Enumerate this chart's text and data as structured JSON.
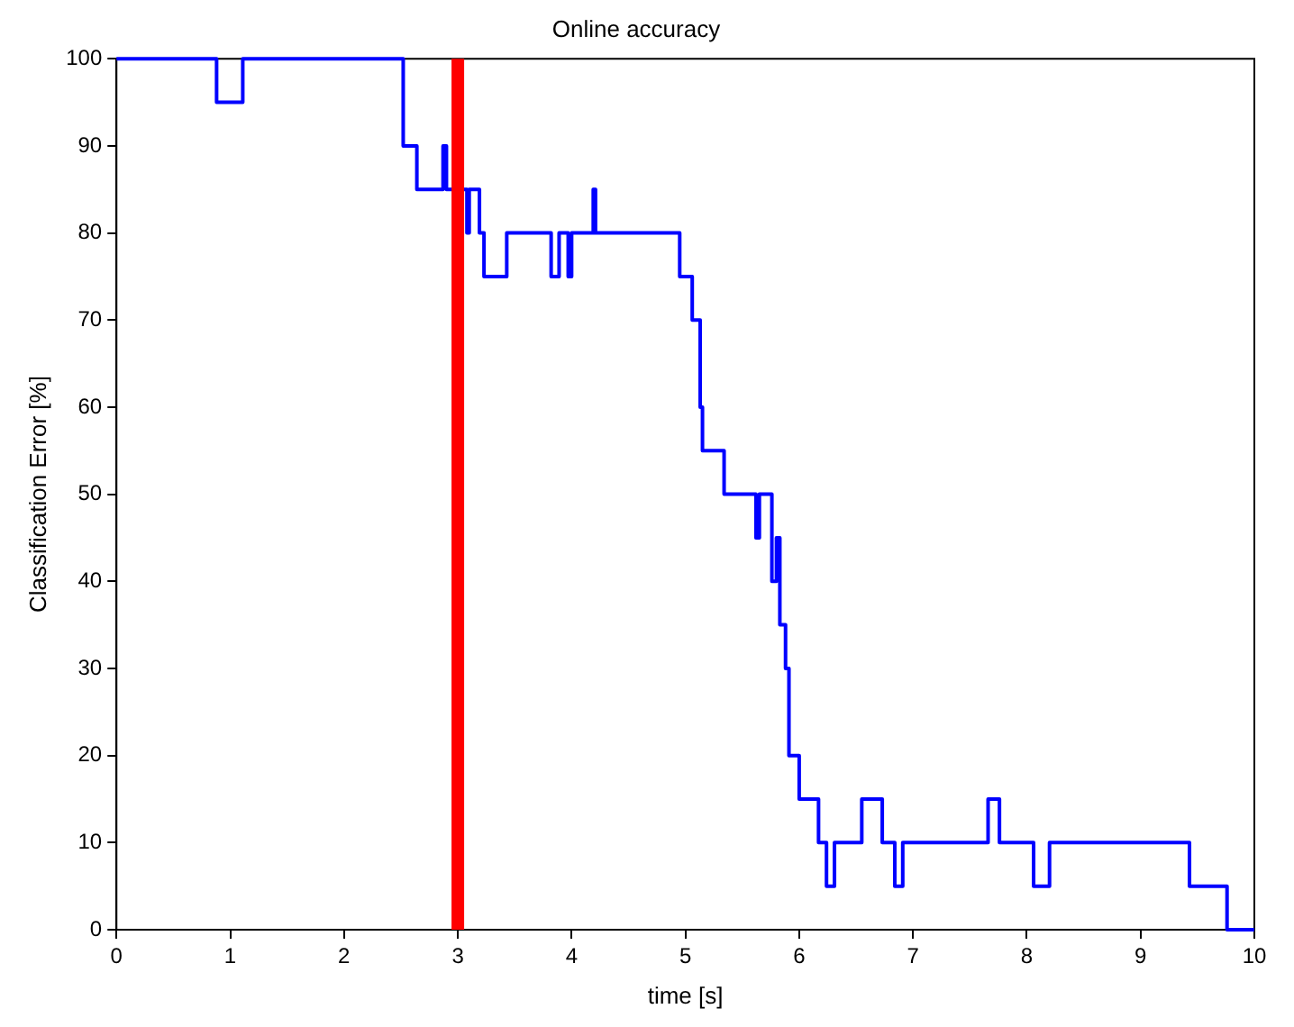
{
  "chart_data": {
    "type": "step",
    "title": "Online accuracy",
    "xlabel": "time [s]",
    "ylabel": "Classification Error [%]",
    "series": [
      {
        "color": "#0000ff",
        "x": [
          0,
          0.88,
          1.11,
          2.52,
          2.64,
          2.87,
          2.9,
          3.08,
          3.1,
          3.19,
          3.23,
          3.43,
          3.82,
          3.89,
          3.97,
          4,
          4.19,
          4.21,
          4.95,
          5.06,
          5.13,
          5.15,
          5.34,
          5.62,
          5.65,
          5.76,
          5.8,
          5.83,
          5.88,
          5.91,
          6,
          6.17,
          6.24,
          6.31,
          6.55,
          6.73,
          6.84,
          6.91,
          7.66,
          7.76,
          8.06,
          8.2,
          9.43,
          9.76,
          10
        ],
        "values": [
          100,
          95,
          100,
          90,
          85,
          90,
          85,
          80,
          85,
          80,
          75,
          80,
          75,
          80,
          75,
          80,
          85,
          80,
          75,
          70,
          60,
          55,
          50,
          45,
          50,
          40,
          45,
          35,
          30,
          20,
          15,
          10,
          5,
          10,
          15,
          10,
          5,
          10,
          15,
          10,
          5,
          10,
          5,
          0,
          0
        ]
      }
    ],
    "xlim": [
      0,
      10
    ],
    "xticks": [
      0,
      1,
      2,
      3,
      4,
      5,
      6,
      7,
      8,
      9,
      10
    ],
    "ylim": [
      0,
      100
    ],
    "yticks": [
      0,
      10,
      20,
      30,
      40,
      50,
      60,
      70,
      80,
      90,
      100
    ],
    "ref_lines": [
      {
        "axis": "x",
        "value": 3,
        "color": "#ff0000"
      }
    ],
    "grid": false,
    "legend": false
  }
}
